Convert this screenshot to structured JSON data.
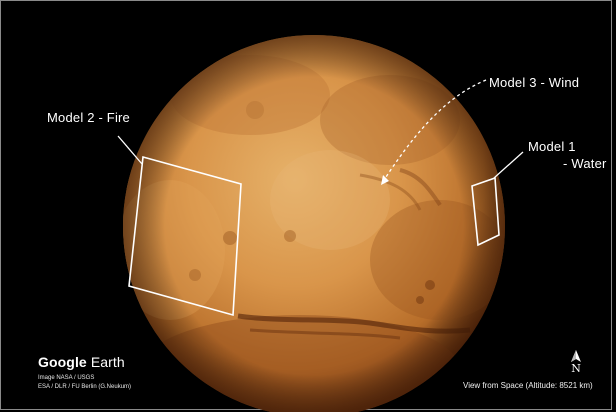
{
  "labels": {
    "model2": "Model 2 - Fire",
    "model3": "Model 3 - Wind",
    "model1_line1": "Model 1",
    "model1_line2": "- Water"
  },
  "brand": {
    "google": "Google",
    "earth": "Earth"
  },
  "credits": {
    "line1": "Image NASA / USGS",
    "line2": "ESA / DLR / FU Berlin (G.Neukum)"
  },
  "view_info": "View from Space (Altitude: 8521 km)",
  "north_label": "N",
  "colors": {
    "background": "#000000",
    "planet_light": "#e0a45a",
    "planet_dark": "#7a3d14",
    "overlay_stroke": "#ffffff"
  }
}
